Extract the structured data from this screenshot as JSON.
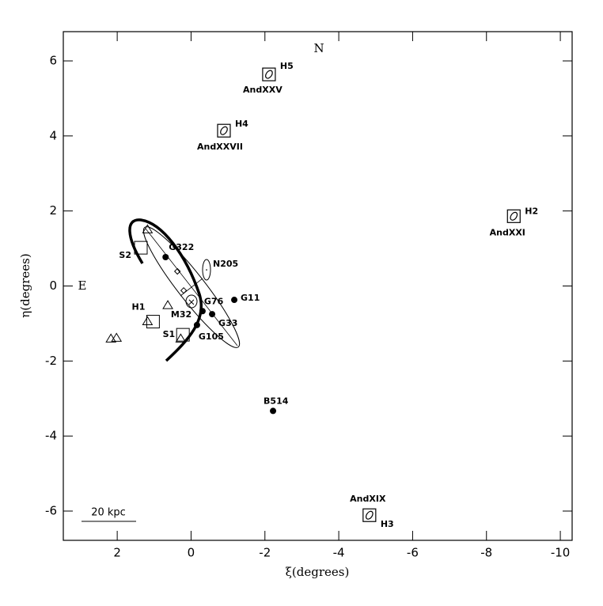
{
  "chart_data": {
    "type": "scatter",
    "xlabel": "ξ(degrees)",
    "ylabel": "η(degrees)",
    "xlim": [
      3.46,
      -10.32
    ],
    "ylim": [
      -6.78,
      6.78
    ],
    "xticks": [
      2,
      0,
      -2,
      -4,
      -6,
      -8,
      -10
    ],
    "yticks": [
      -6,
      -4,
      -2,
      0,
      2,
      4,
      6
    ],
    "compass": [
      "N",
      "E"
    ],
    "scale_bar": "20 kpc",
    "color": "#000000",
    "series": [
      {
        "marker": "dot",
        "x": [
          0.69,
          -1.17,
          -0.31,
          -0.57,
          -0.16,
          -2.22
        ],
        "y": [
          0.77,
          -0.37,
          -0.67,
          -0.75,
          -1.04,
          -3.33
        ],
        "labels": [
          "G322",
          "G11",
          "G76",
          "G33",
          "G105",
          "B514"
        ]
      },
      {
        "marker": "boxed-dwarf",
        "x": [
          -2.11,
          -0.89,
          -8.74,
          -4.83
        ],
        "y": [
          5.64,
          4.14,
          1.86,
          -6.11
        ],
        "labels": [
          "H5",
          "H4",
          "H2",
          "H3"
        ],
        "sublabels": [
          "AndXXV",
          "AndXXVII",
          "AndXXI",
          "AndXIX"
        ]
      },
      {
        "marker": "square",
        "x": [
          1.36,
          1.03,
          0.22
        ],
        "y": [
          1.02,
          -0.95,
          -1.3
        ],
        "labels": [
          "S2",
          "H1",
          "S1"
        ]
      },
      {
        "marker": "triangle",
        "x": [
          1.18,
          1.18,
          0.63,
          2.17,
          2.02,
          0.28
        ],
        "y": [
          1.5,
          -0.95,
          -0.52,
          -1.41,
          -1.39,
          -1.41
        ]
      },
      {
        "marker": "diamond",
        "x": [
          0.37,
          0.2
        ],
        "y": [
          0.39,
          -0.12
        ]
      },
      {
        "marker": "cross",
        "x": [
          -0.01
        ],
        "y": [
          -0.43
        ],
        "labels": [
          "M32"
        ]
      },
      {
        "marker": "ellipse",
        "x": [
          -0.42
        ],
        "y": [
          0.43
        ],
        "labels": [
          "N205"
        ]
      }
    ]
  }
}
